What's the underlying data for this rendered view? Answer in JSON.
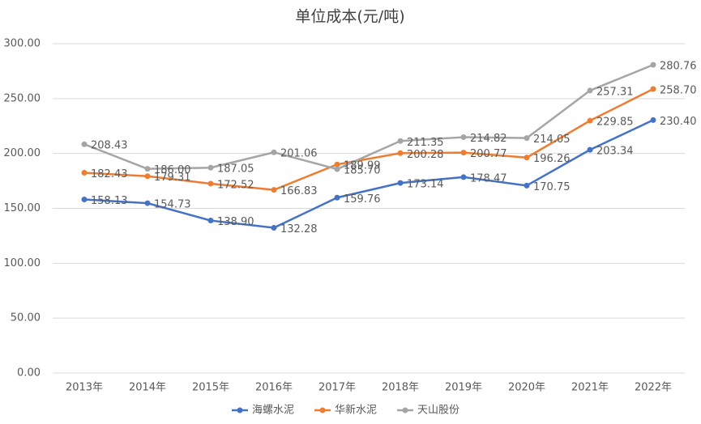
{
  "chart_data": {
    "type": "line",
    "title": "单位成本(元/吨)",
    "categories": [
      "2013年",
      "2014年",
      "2015年",
      "2016年",
      "2017年",
      "2018年",
      "2019年",
      "2020年",
      "2021年",
      "2022年"
    ],
    "ylim": [
      0,
      300
    ],
    "yticks": [
      {
        "value": 0,
        "label": "0.00"
      },
      {
        "value": 50,
        "label": "50.00"
      },
      {
        "value": 100,
        "label": "100.00"
      },
      {
        "value": 150,
        "label": "150.00"
      },
      {
        "value": 200,
        "label": "200.00"
      },
      {
        "value": 250,
        "label": "250.00"
      },
      {
        "value": 300,
        "label": "300.00"
      }
    ],
    "grid": true,
    "legend": "bottom",
    "series": [
      {
        "name": "海螺水泥",
        "color": "#4472c4",
        "values": [
          158.13,
          154.73,
          138.9,
          132.28,
          159.76,
          173.14,
          178.47,
          170.75,
          203.34,
          230.4
        ],
        "value_labels": [
          "158.13",
          "154.73",
          "138.90",
          "132.28",
          "159.76",
          "173.14",
          "178.47",
          "170.75",
          "203.34",
          "230.40"
        ]
      },
      {
        "name": "华新水泥",
        "color": "#ed7d31",
        "values": [
          182.43,
          179.31,
          172.52,
          166.83,
          189.99,
          200.28,
          200.77,
          196.26,
          229.85,
          258.7
        ],
        "value_labels": [
          "182.43",
          "179.31",
          "172.52",
          "166.83",
          "189.99",
          "200.28",
          "200.77",
          "196.26",
          "229.85",
          "258.70"
        ]
      },
      {
        "name": "天山股份",
        "color": "#a5a5a5",
        "values": [
          208.43,
          186.0,
          187.05,
          201.06,
          185.7,
          211.35,
          214.82,
          214.05,
          257.31,
          280.76
        ],
        "value_labels": [
          "208.43",
          "186.00",
          "187.05",
          "201.06",
          "185.70",
          "211.35",
          "214.82",
          "214.05",
          "257.31",
          "280.76"
        ]
      }
    ]
  }
}
